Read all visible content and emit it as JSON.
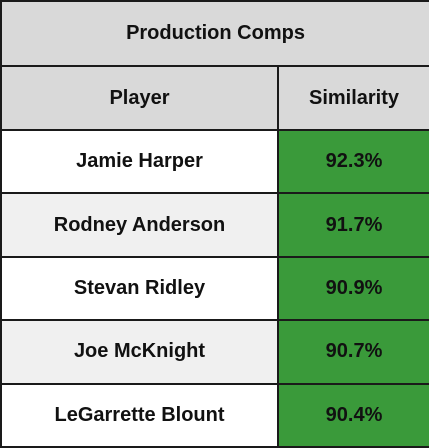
{
  "table": {
    "title": "Production Comps",
    "headers": {
      "player": "Player",
      "similarity": "Similarity"
    },
    "rows": [
      {
        "player": "Jamie Harper",
        "similarity": "92.3%"
      },
      {
        "player": "Rodney Anderson",
        "similarity": "91.7%"
      },
      {
        "player": "Stevan Ridley",
        "similarity": "90.9%"
      },
      {
        "player": "Joe McKnight",
        "similarity": "90.7%"
      },
      {
        "player": "LeGarrette Blount",
        "similarity": "90.4%"
      }
    ]
  },
  "colors": {
    "header_bg": "#d9d9d9",
    "similarity_bg": "#3a9a3a",
    "alt_row_bg": "#f0f0f0"
  }
}
